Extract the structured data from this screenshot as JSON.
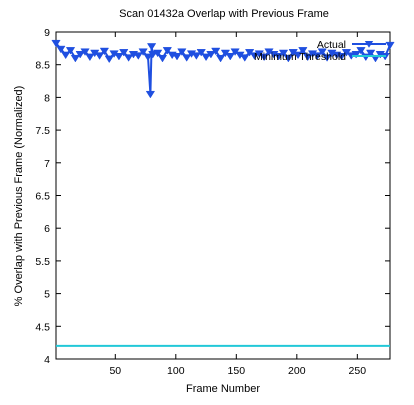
{
  "chart_data": {
    "type": "line",
    "title": "Scan 01432a Overlap with Previous Frame",
    "xlabel": "Frame Number",
    "ylabel": "% Overlap with Previous Frame (Normalized)",
    "xlim": [
      1,
      277
    ],
    "ylim": [
      4,
      9
    ],
    "xticks": [
      50,
      100,
      150,
      200,
      250
    ],
    "yticks": [
      4,
      4.5,
      5,
      5.5,
      6,
      6.5,
      7,
      7.5,
      8,
      8.5,
      9
    ],
    "grid": false,
    "legend_position": "top-right",
    "series": [
      {
        "name": "Actual",
        "color": "#1f4fe0",
        "marker": "triangle-down",
        "x": [
          1,
          5,
          9,
          13,
          17,
          21,
          25,
          29,
          33,
          37,
          41,
          45,
          49,
          53,
          57,
          61,
          65,
          69,
          73,
          77,
          79,
          80,
          81,
          85,
          89,
          93,
          97,
          101,
          105,
          109,
          113,
          117,
          121,
          125,
          129,
          133,
          137,
          141,
          145,
          149,
          153,
          157,
          161,
          165,
          169,
          173,
          177,
          181,
          185,
          189,
          193,
          197,
          201,
          205,
          209,
          213,
          217,
          221,
          225,
          229,
          233,
          237,
          241,
          245,
          249,
          253,
          257,
          261,
          265,
          269,
          273,
          277
        ],
        "y": [
          8.83,
          8.74,
          8.65,
          8.72,
          8.6,
          8.66,
          8.7,
          8.62,
          8.68,
          8.64,
          8.71,
          8.59,
          8.67,
          8.63,
          8.69,
          8.61,
          8.66,
          8.64,
          8.7,
          8.62,
          8.05,
          8.78,
          8.66,
          8.68,
          8.6,
          8.72,
          8.65,
          8.63,
          8.7,
          8.61,
          8.67,
          8.64,
          8.69,
          8.62,
          8.66,
          8.71,
          8.6,
          8.68,
          8.63,
          8.7,
          8.65,
          8.61,
          8.69,
          8.64,
          8.67,
          8.62,
          8.7,
          8.66,
          8.63,
          8.68,
          8.6,
          8.69,
          8.65,
          8.72,
          8.62,
          8.67,
          8.64,
          8.7,
          8.61,
          8.68,
          8.65,
          8.63,
          8.69,
          8.64,
          8.66,
          8.72,
          8.62,
          8.68,
          8.6,
          8.66,
          8.63,
          8.8
        ]
      },
      {
        "name": "Minimum Threshold",
        "color": "#22c8d8",
        "x": [
          1,
          277
        ],
        "y": [
          4.2,
          4.2
        ]
      }
    ]
  }
}
